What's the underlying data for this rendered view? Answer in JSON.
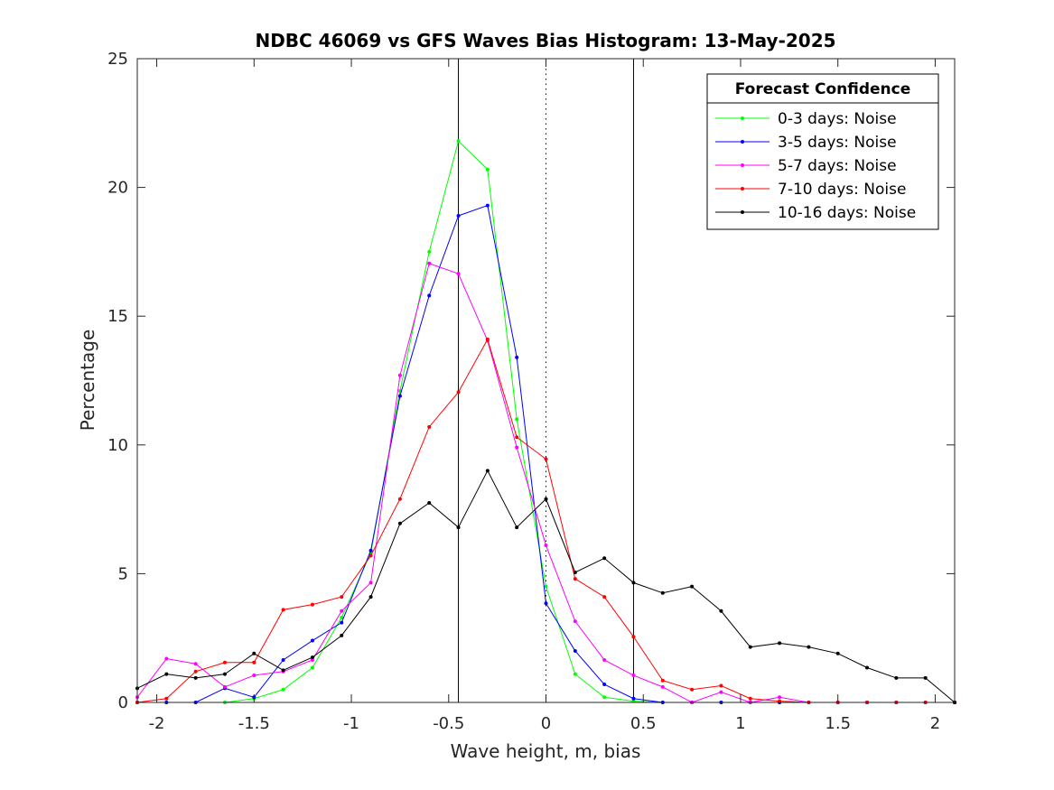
{
  "chart_data": {
    "type": "line",
    "title": "NDBC 46069 vs GFS Waves Bias Histogram: 13-May-2025",
    "xlabel": "Wave height, m, bias",
    "ylabel": "Percentage",
    "xlim": [
      -2.1,
      2.1
    ],
    "ylim": [
      0,
      25
    ],
    "xticks": [
      -2,
      -1.5,
      -1,
      -0.5,
      0,
      0.5,
      1,
      1.5,
      2
    ],
    "xtick_labels": [
      "-2",
      "-1.5",
      "-1",
      "-0.5",
      "0",
      "0.5",
      "1",
      "1.5",
      "2"
    ],
    "yticks": [
      0,
      5,
      10,
      15,
      20,
      25
    ],
    "ytick_labels": [
      "0",
      "5",
      "10",
      "15",
      "20",
      "25"
    ],
    "grid": false,
    "reference_lines": [
      {
        "x": -0.45,
        "style": "solid"
      },
      {
        "x": 0,
        "style": "dotted"
      },
      {
        "x": 0.45,
        "style": "solid"
      }
    ],
    "legend": {
      "title": "Forecast Confidence",
      "placement": "top-right"
    },
    "x": [
      -2.1,
      -1.95,
      -1.8,
      -1.65,
      -1.5,
      -1.35,
      -1.2,
      -1.05,
      -0.9,
      -0.75,
      -0.6,
      -0.45,
      -0.3,
      -0.15,
      0,
      0.15,
      0.3,
      0.45,
      0.6,
      0.75,
      0.9,
      1.05,
      1.2,
      1.35,
      1.5,
      1.65,
      1.8,
      1.95,
      2.1
    ],
    "series": [
      {
        "name": "0-3 days: Noise",
        "color": "#00ff00",
        "values": [
          0,
          0,
          0,
          0,
          0.15,
          0.5,
          1.35,
          3.3,
          5.8,
          12.1,
          17.5,
          21.8,
          20.7,
          11.0,
          4.5,
          1.1,
          0.2,
          0.05,
          0,
          0,
          0,
          0,
          0,
          0,
          0,
          0,
          0,
          0,
          0
        ]
      },
      {
        "name": "3-5 days: Noise",
        "color": "#0000ff",
        "values": [
          0,
          0,
          0,
          0.55,
          0.2,
          1.65,
          2.4,
          3.1,
          5.9,
          11.9,
          15.8,
          18.9,
          19.3,
          13.4,
          3.85,
          2.0,
          0.7,
          0.15,
          0,
          0,
          0,
          0,
          0,
          0,
          0,
          0,
          0,
          0,
          0
        ]
      },
      {
        "name": "5-7 days: Noise",
        "color": "#ff00ff",
        "values": [
          0.2,
          1.7,
          1.5,
          0.6,
          1.05,
          1.2,
          1.65,
          3.55,
          4.65,
          12.7,
          17.05,
          16.65,
          14.05,
          9.9,
          6.1,
          3.15,
          1.65,
          1.05,
          0.6,
          0,
          0.4,
          0,
          0.2,
          0,
          0,
          0,
          0,
          0,
          0
        ]
      },
      {
        "name": "7-10 days: Noise",
        "color": "#ff0000",
        "values": [
          0,
          0.15,
          1.2,
          1.55,
          1.55,
          3.6,
          3.8,
          4.1,
          5.7,
          7.9,
          10.7,
          12.05,
          14.1,
          10.3,
          9.45,
          4.8,
          4.1,
          2.55,
          0.85,
          0.5,
          0.65,
          0.15,
          0.05,
          0,
          0,
          0,
          0,
          0,
          0
        ]
      },
      {
        "name": "10-16 days: Noise",
        "color": "#000000",
        "values": [
          0.55,
          1.1,
          0.95,
          1.1,
          1.9,
          1.25,
          1.75,
          2.6,
          4.1,
          6.95,
          7.75,
          6.8,
          9.0,
          6.8,
          7.9,
          5.05,
          5.6,
          4.65,
          4.25,
          4.5,
          3.55,
          2.15,
          2.3,
          2.15,
          1.9,
          1.35,
          0.95,
          0.95,
          0
        ]
      }
    ]
  }
}
